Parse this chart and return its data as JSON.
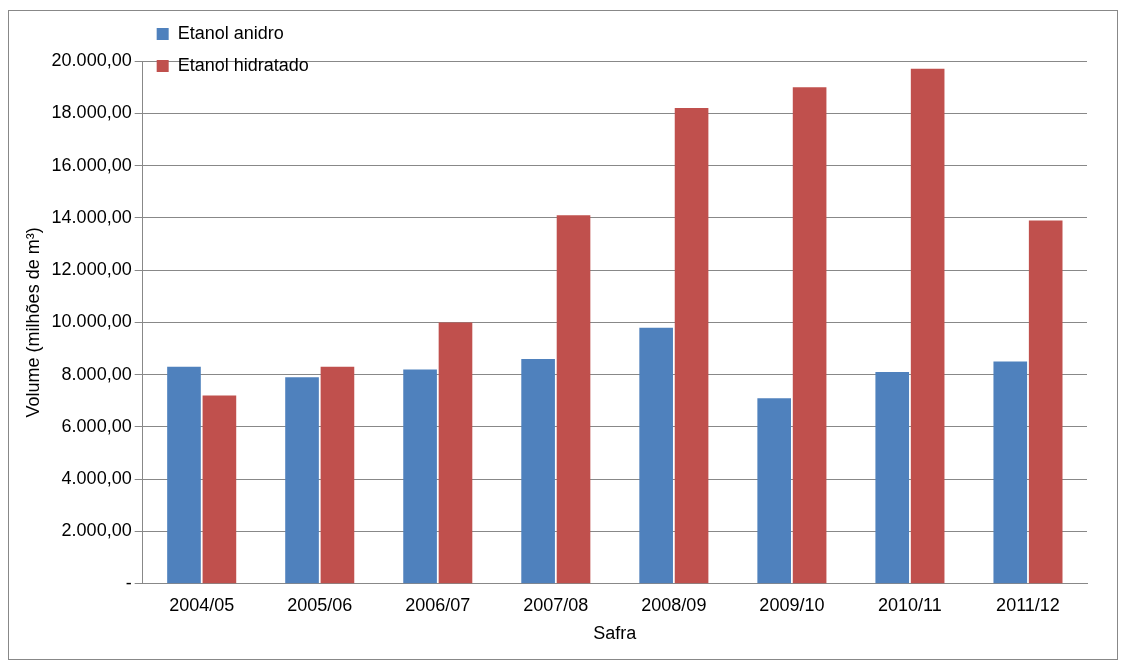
{
  "chart_data": {
    "type": "bar",
    "xlabel": "Safra",
    "ylabel": "Volume (milhões de m³)",
    "categories": [
      "2004/05",
      "2005/06",
      "2006/07",
      "2007/08",
      "2008/09",
      "2009/10",
      "2010/11",
      "2011/12"
    ],
    "series": [
      {
        "name": "Etanol anidro",
        "color": "#4f81bd",
        "values": [
          8300,
          7900,
          8200,
          8600,
          9800,
          7100,
          8100,
          8500
        ]
      },
      {
        "name": "Etanol hidratado",
        "color": "#c0504d",
        "values": [
          7200,
          8300,
          10000,
          14100,
          18200,
          19000,
          19700,
          13900
        ]
      }
    ],
    "ylim": [
      0,
      20000
    ],
    "yticks": [
      {
        "value": 0,
        "label": "-"
      },
      {
        "value": 2000,
        "label": "2.000,00"
      },
      {
        "value": 4000,
        "label": "4.000,00"
      },
      {
        "value": 6000,
        "label": "6.000,00"
      },
      {
        "value": 8000,
        "label": "8.000,00"
      },
      {
        "value": 10000,
        "label": "10.000,00"
      },
      {
        "value": 12000,
        "label": "12.000,00"
      },
      {
        "value": 14000,
        "label": "14.000,00"
      },
      {
        "value": 16000,
        "label": "16.000,00"
      },
      {
        "value": 18000,
        "label": "18.000,00"
      },
      {
        "value": 20000,
        "label": "20.000,00"
      }
    ],
    "grid": "y",
    "legend": "top left"
  }
}
